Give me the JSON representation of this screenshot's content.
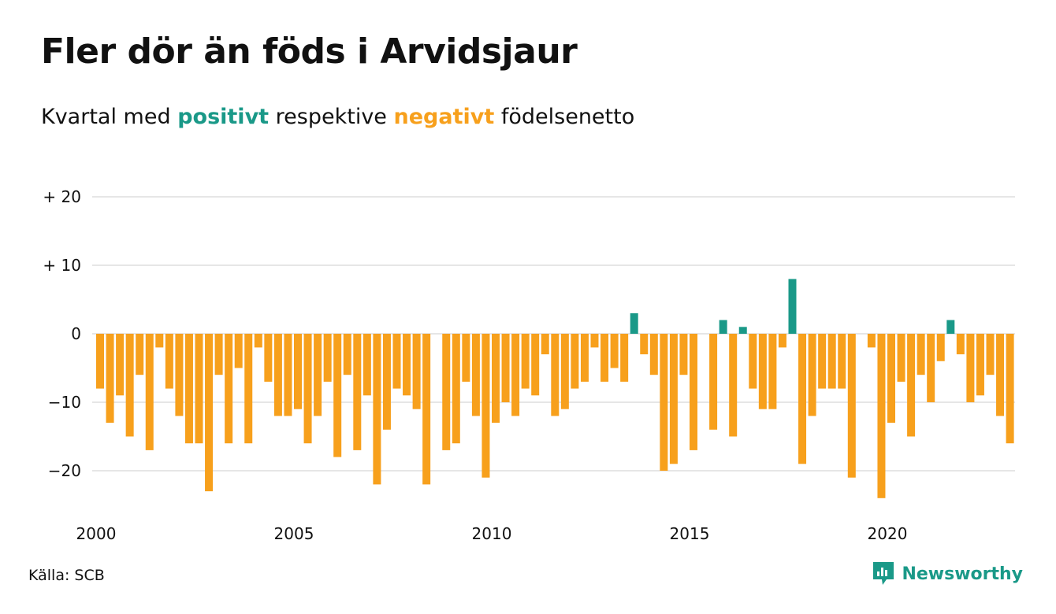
{
  "title": "Fler dör än föds i Arvidsjaur",
  "subtitle": {
    "prefix": "Kvartal med",
    "positive": "positivt",
    "middle": "respektive",
    "negative": "negativt",
    "suffix": "födelsenetto"
  },
  "source": "Källa: SCB",
  "brand": "Newsworthy",
  "colors": {
    "positive": "#1a9988",
    "negative": "#f7a01c",
    "grid": "#dddddd",
    "text": "#111111"
  },
  "chart_data": {
    "type": "bar",
    "start_year": 2000,
    "start_quarter": 1,
    "ylim": [
      -26,
      22
    ],
    "yticks": [
      {
        "value": 20,
        "label": "+ 20"
      },
      {
        "value": 10,
        "label": "+ 10"
      },
      {
        "value": 0,
        "label": "0"
      },
      {
        "value": -10,
        "label": "−10"
      },
      {
        "value": -20,
        "label": "−20"
      }
    ],
    "xticks": [
      {
        "year": 2000,
        "label": "2000"
      },
      {
        "year": 2005,
        "label": "2005"
      },
      {
        "year": 2010,
        "label": "2010"
      },
      {
        "year": 2015,
        "label": "2015"
      },
      {
        "year": 2020,
        "label": "2020"
      }
    ],
    "grid": true,
    "values": [
      -8,
      -13,
      -9,
      -15,
      -6,
      -17,
      -2,
      -8,
      -12,
      -16,
      -16,
      -23,
      -6,
      -16,
      -5,
      -16,
      -2,
      -7,
      -12,
      -12,
      -11,
      -16,
      -12,
      -7,
      -18,
      -6,
      -17,
      -9,
      -22,
      -14,
      -8,
      -9,
      -11,
      -22,
      0,
      -17,
      -16,
      -7,
      -12,
      -21,
      -13,
      -10,
      -12,
      -8,
      -9,
      -3,
      -12,
      -11,
      -8,
      -7,
      -2,
      -7,
      -5,
      -7,
      3,
      -3,
      -6,
      -20,
      -19,
      -6,
      -17,
      0,
      -14,
      2,
      -15,
      1,
      -8,
      -11,
      -11,
      -2,
      8,
      -19,
      -12,
      -8,
      -8,
      -8,
      -21,
      0,
      -2,
      -24,
      -13,
      -7,
      -15,
      -6,
      -10,
      -4,
      2,
      -3,
      -10,
      -9,
      -6,
      -12,
      -16
    ]
  }
}
